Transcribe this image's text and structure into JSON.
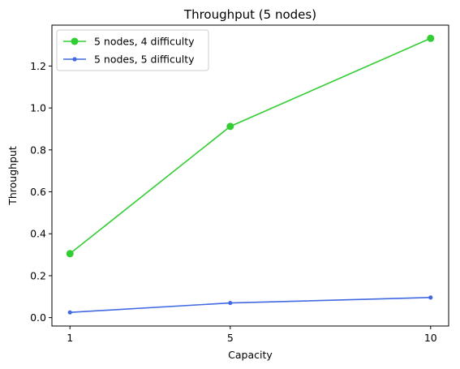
{
  "chart_data": {
    "type": "line",
    "title": "Throughput (5 nodes)",
    "xlabel": "Capacity",
    "ylabel": "Throughput",
    "x": [
      1,
      5,
      10
    ],
    "x_ticks": [
      "1",
      "5",
      "10"
    ],
    "xlim": [
      0.55,
      10.45
    ],
    "y_ticks": [
      "0.0",
      "0.2",
      "0.4",
      "0.6",
      "0.8",
      "1.0",
      "1.2"
    ],
    "ylim": [
      -0.04,
      1.395
    ],
    "grid": false,
    "legend_position": "top-left",
    "series": [
      {
        "name": "5 nodes, 4 difficulty",
        "values": [
          0.305,
          0.912,
          1.332
        ],
        "color": "#32cd32",
        "marker": "large-circle"
      },
      {
        "name": "5 nodes, 5 difficulty",
        "values": [
          0.025,
          0.07,
          0.096
        ],
        "color": "#4169e1",
        "marker": "small-circle"
      }
    ]
  }
}
